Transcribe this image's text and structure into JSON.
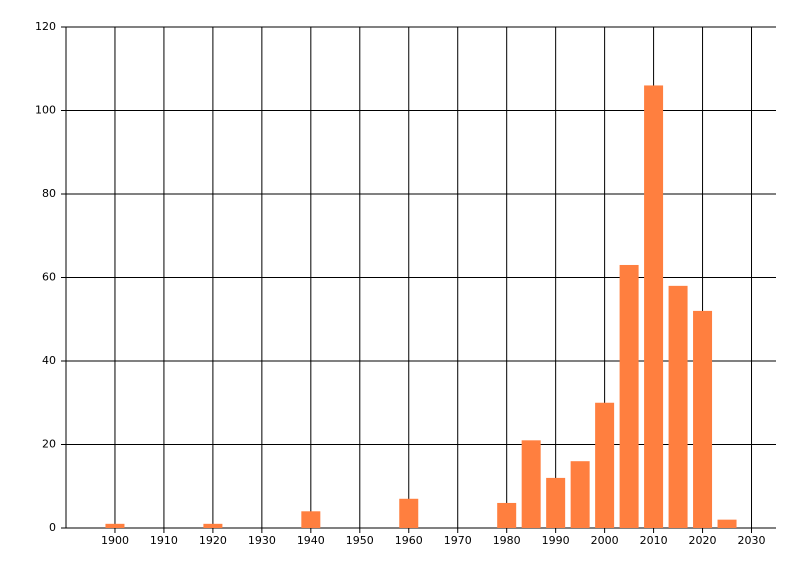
{
  "chart_data": {
    "type": "bar",
    "x": [
      1900,
      1920,
      1940,
      1960,
      1980,
      1985,
      1990,
      1995,
      2000,
      2005,
      2010,
      2015,
      2020,
      2025
    ],
    "values": [
      1,
      1,
      4,
      7,
      6,
      21,
      12,
      16,
      30,
      63,
      106,
      58,
      52,
      2
    ],
    "color": "#ff7f3f",
    "xlim": [
      1890,
      2035
    ],
    "xticks": [
      1900,
      1910,
      1920,
      1930,
      1940,
      1950,
      1960,
      1970,
      1980,
      1990,
      2000,
      2010,
      2020,
      2030
    ],
    "ylim": [
      0,
      120
    ],
    "yticks": [
      0,
      20,
      40,
      60,
      80,
      100,
      120
    ],
    "grid": true
  }
}
